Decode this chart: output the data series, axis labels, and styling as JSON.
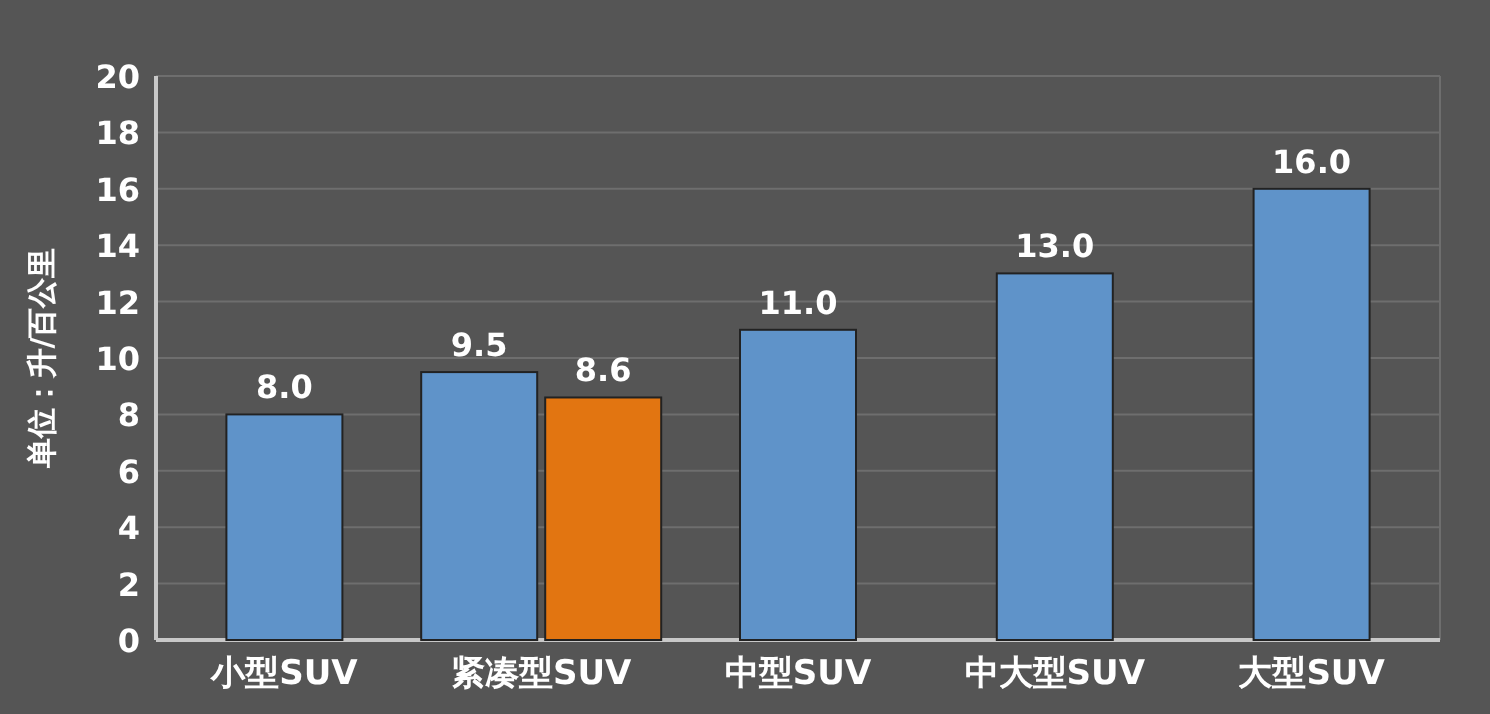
{
  "chart_data": {
    "type": "bar",
    "ylabel": "单位：升/百公里",
    "categories": [
      "小型SUV",
      "紧凑型SUV",
      "中型SUV",
      "中大型SUV",
      "大型SUV"
    ],
    "series": [
      {
        "color": "#5f93c9",
        "values": [
          8.0,
          9.5,
          11.0,
          13.0,
          16.0
        ],
        "value_labels": [
          "8.0",
          "9.5",
          "11.0",
          "13.0",
          "16.0"
        ]
      },
      {
        "color": "#e27511",
        "values": [
          null,
          8.6,
          null,
          null,
          null
        ],
        "value_labels": [
          null,
          "8.6",
          null,
          null,
          null
        ]
      }
    ],
    "ylim": [
      0,
      20
    ],
    "yticks": [
      0,
      2,
      4,
      6,
      8,
      10,
      12,
      14,
      16,
      18,
      20
    ],
    "grid": "y"
  }
}
